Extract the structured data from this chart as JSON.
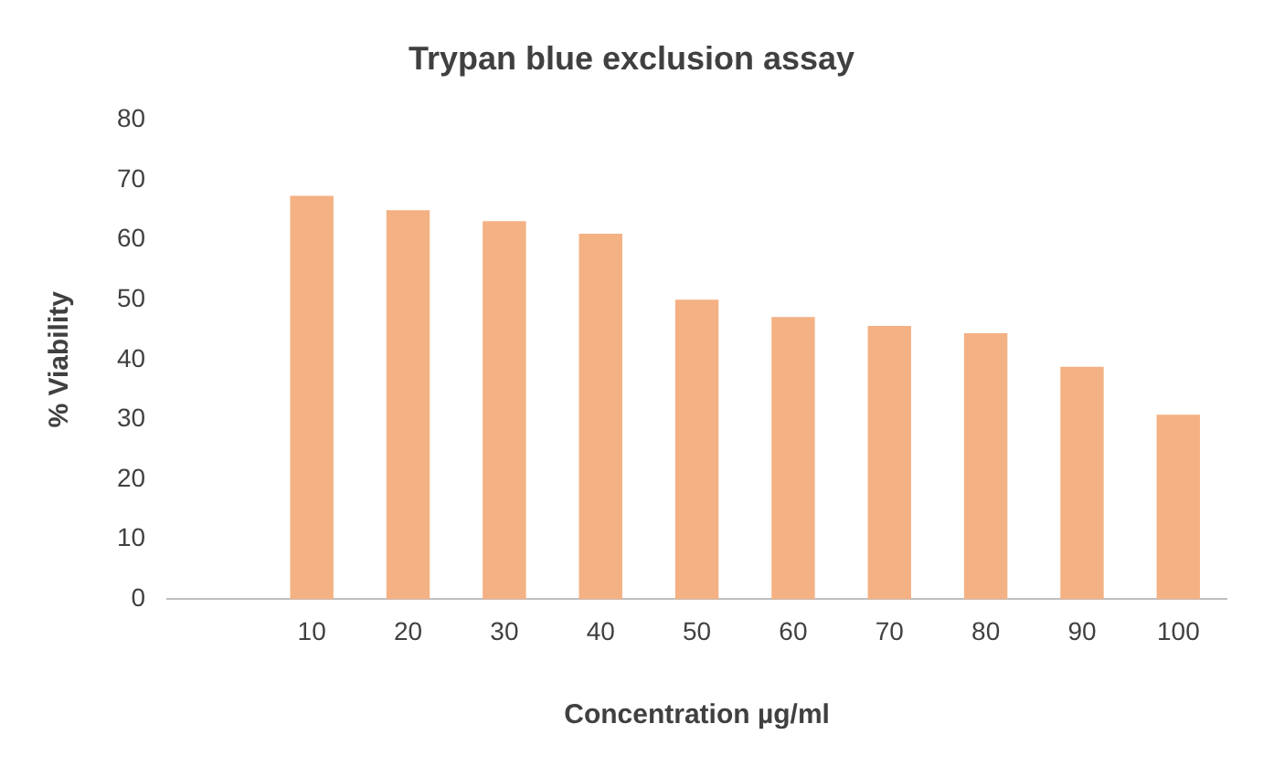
{
  "chart_data": {
    "type": "bar",
    "title": "Trypan blue exclusion assay",
    "xlabel": "Concentration µg/ml",
    "ylabel": "% Viability",
    "categories": [
      null,
      "10",
      "20",
      "30",
      "40",
      "50",
      "60",
      "70",
      "80",
      "90",
      "100"
    ],
    "values": [
      null,
      67.3,
      64.9,
      63.1,
      61,
      50,
      47.1,
      45.6,
      44.4,
      38.8,
      30.8
    ],
    "color": "#f4b183",
    "ylim": [
      0,
      80
    ],
    "yticks": [
      0,
      10,
      20,
      30,
      40,
      50,
      60,
      70,
      80
    ],
    "grid": false,
    "legend": false
  }
}
